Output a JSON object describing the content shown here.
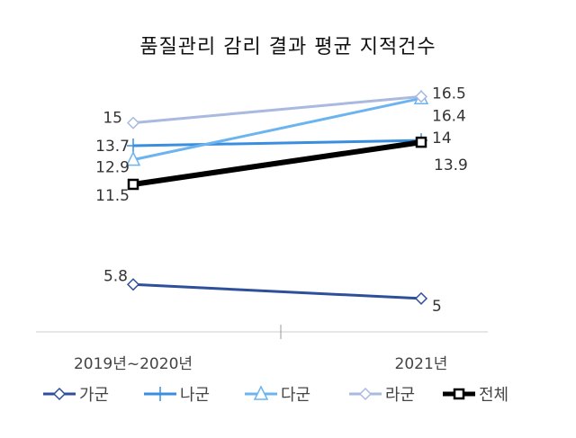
{
  "chart_data": {
    "type": "line",
    "title": "품질관리 감리 결과 평균 지적건수",
    "categories": [
      "2019년~2020년",
      "2021년"
    ],
    "ylim": [
      3.1,
      17.9
    ],
    "grid": false,
    "legend": "bottom",
    "series": [
      {
        "name": "가군",
        "values": [
          5.8,
          5
        ],
        "color": "#2f4f9a",
        "marker": "diamond",
        "width": 3
      },
      {
        "name": "나군",
        "values": [
          13.7,
          14
        ],
        "color": "#3a8ee0",
        "marker": "plus",
        "width": 3
      },
      {
        "name": "다군",
        "values": [
          12.9,
          16.4
        ],
        "color": "#6cb4f0",
        "marker": "triangle",
        "width": 3
      },
      {
        "name": "라군",
        "values": [
          15,
          16.5
        ],
        "color": "#a9b9e0",
        "marker": "diamond",
        "width": 3
      },
      {
        "name": "전체",
        "values": [
          11.5,
          13.9
        ],
        "color": "#000000",
        "marker": "square",
        "width": 6
      }
    ]
  }
}
